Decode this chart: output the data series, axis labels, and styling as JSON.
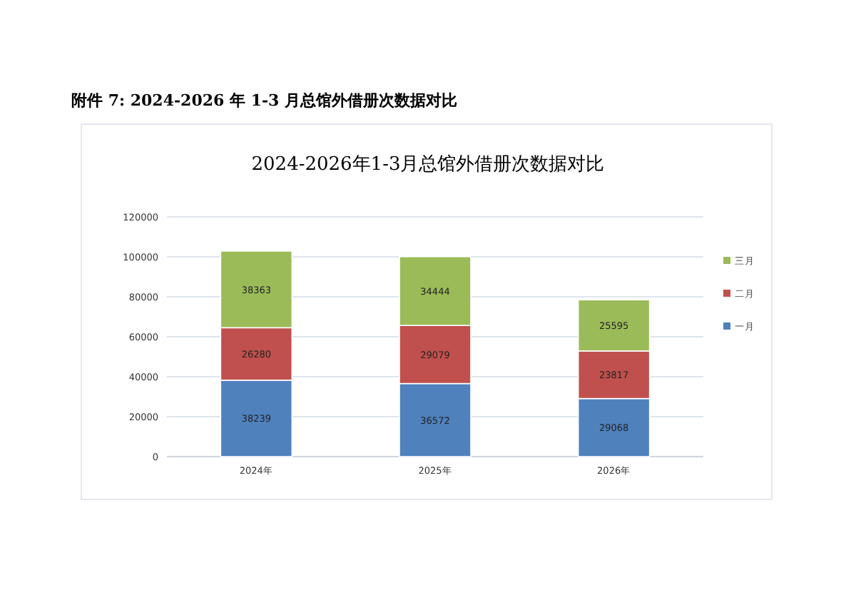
{
  "chart_data": {
    "type": "bar",
    "title": "附件 7: 2024-2026 年 1-3 月总馆外借册次数据对比",
    "subtitle": "2024-2026年1-3月总馆外借册次数据对比",
    "categories": [
      "2024年",
      "2025年",
      "2026年"
    ],
    "series": [
      {
        "name": "一月",
        "color": "#4f81bd",
        "values": [
          38239,
          36572,
          29068
        ]
      },
      {
        "name": "二月",
        "color": "#c0504d",
        "values": [
          26280,
          29079,
          23817
        ]
      },
      {
        "name": "三月",
        "color": "#9bbb59",
        "values": [
          38363,
          34444,
          25595
        ]
      }
    ],
    "stacked": true,
    "data_labels": true,
    "ylim": [
      0,
      120000
    ],
    "yticks": [
      0,
      20000,
      40000,
      60000,
      80000,
      100000,
      120000
    ],
    "grid": "y",
    "legend": "right"
  }
}
